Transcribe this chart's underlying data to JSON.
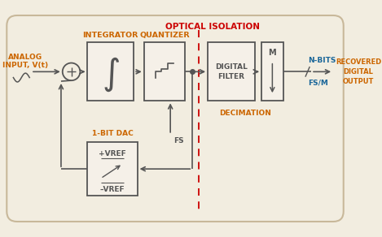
{
  "bg_color": "#f2ede0",
  "border_color": "#c8b89a",
  "block_edge_color": "#555555",
  "text_orange": "#cc6600",
  "text_red": "#cc0000",
  "text_blue": "#1a6699",
  "title": "OPTICAL ISOLATION",
  "analog_input_label1": "ANALOG",
  "analog_input_label2": "INPUT, V(t)",
  "integrator_label": "INTEGRATOR",
  "quantizer_label": "QUANTIZER",
  "digital_filter_label": "DIGITAL\nFILTER",
  "decimation_label": "DECIMATION",
  "dac_label": "1-BIT DAC",
  "fs_label": "FS",
  "nbits_label": "N-BITS",
  "fsm_label": "FS/M",
  "m_label": "M",
  "recovered_label": "RECOVERED\nDIGITAL\nOUTPUT",
  "vref_plus": "+VREF",
  "vref_minus": "–VREF"
}
